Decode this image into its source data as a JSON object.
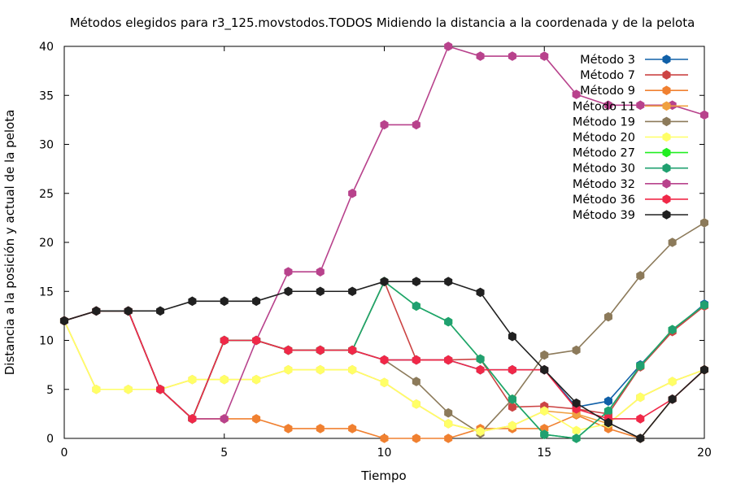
{
  "chart_data": {
    "type": "line",
    "title": "Métodos elegidos para r3_125.movstodos.TODOS Midiendo la distancia a la coordenada y de la pelota",
    "xlabel": "Tiempo",
    "ylabel": "Distancia a la posición y actual de la pelota",
    "xlim": [
      0,
      20
    ],
    "ylim": [
      0,
      40
    ],
    "xticks": [
      0,
      5,
      10,
      15,
      20
    ],
    "yticks": [
      0,
      5,
      10,
      15,
      20,
      25,
      30,
      35,
      40
    ],
    "grid": false,
    "legend_position": "top-right",
    "x": [
      0,
      1,
      2,
      3,
      4,
      5,
      6,
      7,
      8,
      9,
      10,
      11,
      12,
      13,
      14,
      15,
      16,
      17,
      18,
      19,
      20
    ],
    "series": [
      {
        "name": "Método 3",
        "color": "#1060a8",
        "values": [
          12,
          13,
          13,
          5,
          2,
          10,
          10,
          9,
          9,
          9,
          8,
          8,
          8,
          7,
          7,
          7,
          3.2,
          3.8,
          7.5,
          11,
          13.7
        ]
      },
      {
        "name": "Método 7",
        "color": "#cc4444",
        "values": [
          12,
          13,
          13,
          5,
          2,
          10,
          10,
          9,
          9,
          9,
          16,
          8,
          8,
          8.1,
          3.2,
          3.3,
          3,
          2.5,
          7.3,
          10.9,
          13.5
        ]
      },
      {
        "name": "Método 9",
        "color": "#f08030",
        "values": [
          12,
          13,
          13,
          5,
          2,
          2,
          2,
          1,
          1,
          1,
          0,
          0,
          0,
          1,
          1,
          1,
          2.4,
          1,
          0,
          4,
          7
        ]
      },
      {
        "name": "Método 11",
        "color": "#f0a040",
        "values": [
          12,
          5,
          5,
          5,
          6,
          6,
          6,
          7,
          7,
          7,
          5.7,
          3.5,
          1.5,
          0.7,
          1.3,
          2.8,
          2.5,
          1.5,
          4.2,
          5.8,
          7
        ]
      },
      {
        "name": "Método 19",
        "color": "#8c7a5a",
        "values": [
          12,
          13,
          13,
          5,
          2,
          10,
          10,
          9,
          9,
          9,
          8,
          5.8,
          2.6,
          0.5,
          4,
          8.5,
          9,
          12.4,
          16.6,
          20,
          22
        ]
      },
      {
        "name": "Método 20",
        "color": "#ffff66",
        "values": [
          12,
          5,
          5,
          5,
          6,
          6,
          6,
          7,
          7,
          7,
          5.7,
          3.5,
          1.5,
          0.7,
          1.3,
          2.8,
          0.8,
          1.5,
          4.2,
          5.8,
          7
        ]
      },
      {
        "name": "Método 27",
        "color": "#22ee22",
        "values": [
          12,
          13,
          13,
          5,
          2,
          10,
          10,
          9,
          9,
          9,
          16,
          13.5,
          11.9,
          8.1,
          4,
          0.4,
          0,
          2.8,
          7.4,
          11.1,
          13.6
        ]
      },
      {
        "name": "Método 30",
        "color": "#20a070",
        "values": [
          12,
          13,
          13,
          5,
          2,
          10,
          10,
          9,
          9,
          9,
          16,
          13.5,
          11.9,
          8.1,
          4,
          0.4,
          0,
          2.8,
          7.4,
          11.1,
          13.6
        ]
      },
      {
        "name": "Método 32",
        "color": "#b8428c",
        "values": [
          12,
          13,
          13,
          5,
          2,
          2,
          10,
          17,
          17,
          25,
          32,
          32,
          40,
          39,
          39,
          39,
          35.1,
          34,
          34,
          34,
          33
        ]
      },
      {
        "name": "Método 36",
        "color": "#f02848",
        "values": [
          12,
          13,
          13,
          5,
          2,
          10,
          10,
          9,
          9,
          9,
          8,
          8,
          8,
          7,
          7,
          7,
          3,
          2,
          2,
          4,
          7
        ]
      },
      {
        "name": "Método 39",
        "color": "#202020",
        "values": [
          12,
          13,
          13,
          13,
          14,
          14,
          14,
          15,
          15,
          15,
          16,
          16,
          16,
          14.9,
          10.4,
          7,
          3.6,
          1.6,
          0,
          4,
          7
        ]
      }
    ]
  }
}
